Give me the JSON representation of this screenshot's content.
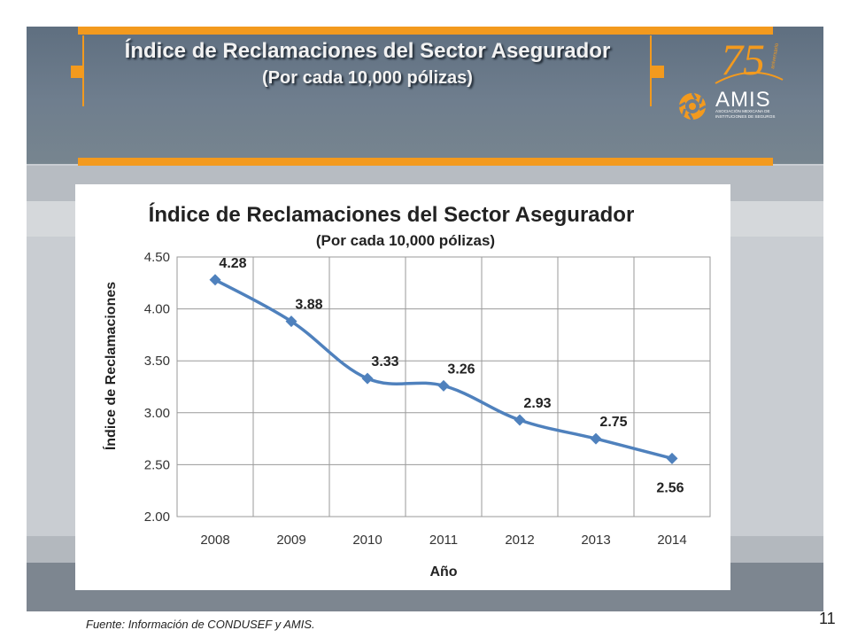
{
  "slide": {
    "title": "Índice de Reclamaciones del Sector Asegurador",
    "subtitle": "(Por  cada 10,000 pólizas)",
    "source": "Fuente: Información de  CONDUSEF y AMIS.",
    "page_number": "11",
    "logo": {
      "anniversary": "75",
      "anniversary_word": "aniversario",
      "brand": "AMIS",
      "org_line1": "ASOCIACIÓN MEXICANA DE",
      "org_line2": "INSTITUCIONES DE SEGUROS"
    }
  },
  "colors": {
    "accent_orange": "#f39a1e",
    "series": "#4f81bd"
  },
  "chart_data": {
    "type": "line",
    "title": "Índice de Reclamaciones del Sector Asegurador",
    "subtitle": "(Por  cada 10,000 pólizas)",
    "xlabel": "Año",
    "ylabel": "Índice de Reclamaciones",
    "categories": [
      "2008",
      "2009",
      "2010",
      "2011",
      "2012",
      "2013",
      "2014"
    ],
    "values": [
      4.28,
      3.88,
      3.33,
      3.26,
      2.93,
      2.75,
      2.56
    ],
    "data_labels": [
      "4.28",
      "3.88",
      "3.33",
      "3.26",
      "2.93",
      "2.75",
      "2.56"
    ],
    "ylim": [
      2.0,
      4.5
    ],
    "yticks": [
      "2.00",
      "2.50",
      "3.00",
      "3.50",
      "4.00",
      "4.50"
    ],
    "grid": true,
    "marker": "diamond",
    "smooth": true
  }
}
